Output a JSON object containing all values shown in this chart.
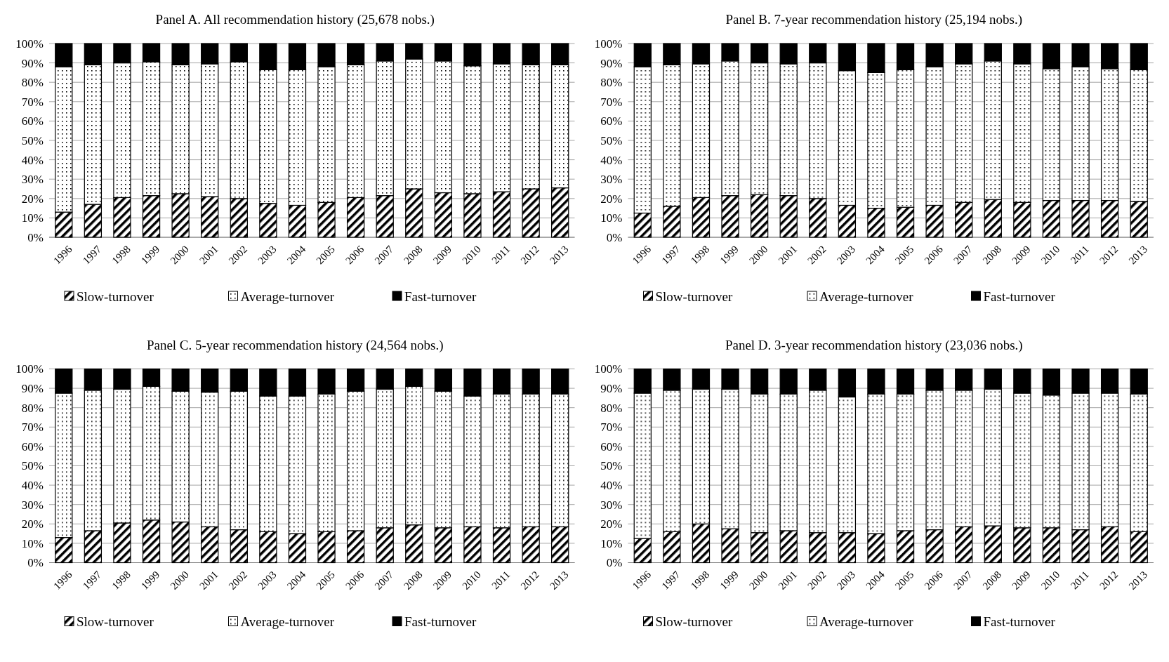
{
  "chart_data": [
    {
      "type": "bar",
      "title": "Panel A. All recommendation history (25,678  nobs.)",
      "stacked": true,
      "categories": [
        "1996",
        "1997",
        "1998",
        "1999",
        "2000",
        "2001",
        "2002",
        "2003",
        "2004",
        "2005",
        "2006",
        "2007",
        "2008",
        "2009",
        "2010",
        "2011",
        "2012",
        "2013"
      ],
      "ylim": [
        0,
        100
      ],
      "yticks": [
        {
          "value": 0,
          "label": "0%"
        },
        {
          "value": 10,
          "label": "10%"
        },
        {
          "value": 20,
          "label": "20%"
        },
        {
          "value": 30,
          "label": "30%"
        },
        {
          "value": 40,
          "label": "40%"
        },
        {
          "value": 50,
          "label": "50%"
        },
        {
          "value": 60,
          "label": "60%"
        },
        {
          "value": 70,
          "label": "70%"
        },
        {
          "value": 80,
          "label": "80%"
        },
        {
          "value": 90,
          "label": "90%"
        },
        {
          "value": 100,
          "label": "100%"
        }
      ],
      "grid": "y",
      "legend": "bottom",
      "series": [
        {
          "name": "Slow-turnover",
          "color": "#000000",
          "values": [
            13,
            17,
            20.5,
            21.5,
            22.5,
            21,
            20,
            17.5,
            16.5,
            18,
            20.5,
            21.5,
            25,
            23,
            22.5,
            23.5,
            25,
            25.5
          ]
        },
        {
          "name": "Average-turnover",
          "color": "#000000",
          "values": [
            75,
            72,
            69.5,
            69,
            66.5,
            68.5,
            70.5,
            69,
            70,
            70,
            68.5,
            69.5,
            67,
            68,
            66,
            66,
            64,
            63.5
          ]
        },
        {
          "name": "Fast-turnover",
          "color": "#000000",
          "values": [
            12,
            11,
            10,
            9.5,
            11,
            10.5,
            9.5,
            13.5,
            13.5,
            12,
            11,
            9,
            8,
            9,
            11.5,
            10.5,
            11,
            11
          ]
        }
      ]
    },
    {
      "type": "bar",
      "title": "Panel B. 7-year recommendation history (25,194  nobs.)",
      "stacked": true,
      "categories": [
        "1996",
        "1997",
        "1998",
        "1999",
        "2000",
        "2001",
        "2002",
        "2003",
        "2004",
        "2005",
        "2006",
        "2007",
        "2008",
        "2009",
        "2010",
        "2011",
        "2012",
        "2013"
      ],
      "ylim": [
        0,
        100
      ],
      "yticks": [
        {
          "value": 0,
          "label": "0%"
        },
        {
          "value": 10,
          "label": "10%"
        },
        {
          "value": 20,
          "label": "20%"
        },
        {
          "value": 30,
          "label": "30%"
        },
        {
          "value": 40,
          "label": "40%"
        },
        {
          "value": 50,
          "label": "50%"
        },
        {
          "value": 60,
          "label": "60%"
        },
        {
          "value": 70,
          "label": "70%"
        },
        {
          "value": 80,
          "label": "80%"
        },
        {
          "value": 90,
          "label": "90%"
        },
        {
          "value": 100,
          "label": "100%"
        }
      ],
      "grid": "y",
      "legend": "bottom",
      "series": [
        {
          "name": "Slow-turnover",
          "color": "#000000",
          "values": [
            12.5,
            16,
            20.5,
            21.5,
            22,
            21.5,
            20,
            16.5,
            15,
            15.5,
            16.5,
            18,
            19.5,
            18,
            19,
            19,
            19,
            18.5
          ]
        },
        {
          "name": "Average-turnover",
          "color": "#000000",
          "values": [
            75.5,
            73,
            69,
            69.5,
            68,
            68,
            70,
            69.5,
            70,
            71,
            71.5,
            71.5,
            71.5,
            71.5,
            68,
            69,
            68,
            68
          ]
        },
        {
          "name": "Fast-turnover",
          "color": "#000000",
          "values": [
            12,
            11,
            10.5,
            9,
            10,
            10.5,
            10,
            14,
            15,
            13.5,
            12,
            10.5,
            9,
            10.5,
            13,
            12,
            13,
            13.5
          ]
        }
      ]
    },
    {
      "type": "bar",
      "title": "Panel C. 5-year recommendation history (24,564 nobs.)",
      "stacked": true,
      "categories": [
        "1996",
        "1997",
        "1998",
        "1999",
        "2000",
        "2001",
        "2002",
        "2003",
        "2004",
        "2005",
        "2006",
        "2007",
        "2008",
        "2009",
        "2010",
        "2011",
        "2012",
        "2013"
      ],
      "ylim": [
        0,
        100
      ],
      "yticks": [
        {
          "value": 0,
          "label": "0%"
        },
        {
          "value": 10,
          "label": "10%"
        },
        {
          "value": 20,
          "label": "20%"
        },
        {
          "value": 30,
          "label": "30%"
        },
        {
          "value": 40,
          "label": "40%"
        },
        {
          "value": 50,
          "label": "50%"
        },
        {
          "value": 60,
          "label": "60%"
        },
        {
          "value": 70,
          "label": "70%"
        },
        {
          "value": 80,
          "label": "80%"
        },
        {
          "value": 90,
          "label": "90%"
        },
        {
          "value": 100,
          "label": "100%"
        }
      ],
      "grid": "y",
      "legend": "bottom",
      "series": [
        {
          "name": "Slow-turnover",
          "color": "#000000",
          "values": [
            13,
            16.5,
            20.5,
            22,
            21,
            18.5,
            17,
            16,
            15,
            16,
            16.5,
            18,
            19.5,
            18,
            18.5,
            18,
            18.5,
            18.5
          ]
        },
        {
          "name": "Average-turnover",
          "color": "#000000",
          "values": [
            74.5,
            72.5,
            69,
            69,
            67.5,
            69.5,
            71.5,
            70,
            71,
            71,
            72,
            71.5,
            71.5,
            70.5,
            67.5,
            69,
            68.5,
            68.5
          ]
        },
        {
          "name": "Fast-turnover",
          "color": "#000000",
          "values": [
            12.5,
            11,
            10.5,
            9,
            11.5,
            12,
            11.5,
            14,
            14,
            13,
            11.5,
            10.5,
            9,
            11.5,
            14,
            13,
            13,
            13
          ]
        }
      ]
    },
    {
      "type": "bar",
      "title": "Panel D. 3-year recommendation history (23,036 nobs.)",
      "stacked": true,
      "categories": [
        "1996",
        "1997",
        "1998",
        "1999",
        "2000",
        "2001",
        "2002",
        "2003",
        "2004",
        "2005",
        "2006",
        "2007",
        "2008",
        "2009",
        "2010",
        "2011",
        "2012",
        "2013"
      ],
      "ylim": [
        0,
        100
      ],
      "yticks": [
        {
          "value": 0,
          "label": "0%"
        },
        {
          "value": 10,
          "label": "10%"
        },
        {
          "value": 20,
          "label": "20%"
        },
        {
          "value": 30,
          "label": "30%"
        },
        {
          "value": 40,
          "label": "40%"
        },
        {
          "value": 50,
          "label": "50%"
        },
        {
          "value": 60,
          "label": "60%"
        },
        {
          "value": 70,
          "label": "70%"
        },
        {
          "value": 80,
          "label": "80%"
        },
        {
          "value": 90,
          "label": "90%"
        },
        {
          "value": 100,
          "label": "100%"
        }
      ],
      "grid": "y",
      "legend": "bottom",
      "series": [
        {
          "name": "Slow-turnover",
          "color": "#000000",
          "values": [
            12.5,
            16,
            20,
            17.5,
            15.5,
            16.5,
            15.5,
            15.5,
            15,
            16.5,
            17,
            18.5,
            19,
            18,
            18,
            17,
            18.5,
            16
          ]
        },
        {
          "name": "Average-turnover",
          "color": "#000000",
          "values": [
            75,
            73,
            69.5,
            72,
            71.5,
            70.5,
            73.5,
            70,
            72,
            70.5,
            72,
            70.5,
            70.5,
            69.5,
            68.5,
            70.5,
            69,
            71
          ]
        },
        {
          "name": "Fast-turnover",
          "color": "#000000",
          "values": [
            12.5,
            11,
            10.5,
            10.5,
            13,
            13,
            11,
            14.5,
            13,
            13,
            11,
            11,
            10.5,
            12.5,
            13.5,
            12.5,
            12.5,
            13
          ]
        }
      ]
    }
  ]
}
